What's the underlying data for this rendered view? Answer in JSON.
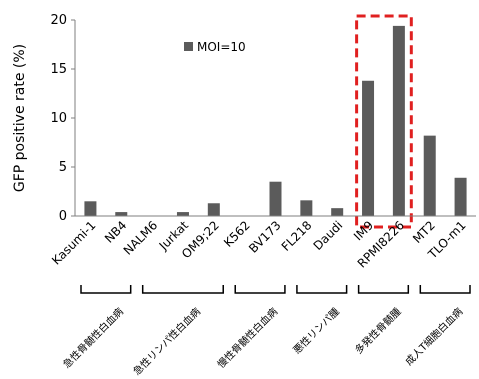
{
  "chart_data": {
    "type": "bar",
    "ylabel": "GFP positive rate (%)",
    "xlabel": "",
    "ylim": [
      0,
      20
    ],
    "yticks": [
      0,
      5,
      10,
      15,
      20
    ],
    "grid": false,
    "legend_position": "top-left",
    "bar_color": "#5b5b5b",
    "highlight_color": "#e02020",
    "categories": [
      "Kasumi-1",
      "NB4",
      "NALM6",
      "Jurkat",
      "OM9;22",
      "K562",
      "BV173",
      "FL218",
      "Daudi",
      "IM9",
      "RPMI8226",
      "MT2",
      "TLO-m1"
    ],
    "series": [
      {
        "name": "MOI=10",
        "values": [
          1.5,
          0.4,
          0,
          0.4,
          1.3,
          0,
          3.5,
          1.6,
          0.8,
          13.8,
          19.4,
          8.2,
          3.9
        ]
      }
    ],
    "highlight": [
      "IM9",
      "RPMI8226"
    ],
    "groups": [
      {
        "label": "急性骨髄性白血病",
        "start": 0,
        "end": 1
      },
      {
        "label": "急性リンパ性白血病",
        "start": 2,
        "end": 4
      },
      {
        "label": "慢性骨髄性白血病",
        "start": 5,
        "end": 6
      },
      {
        "label": "悪性リンパ腫",
        "start": 7,
        "end": 8
      },
      {
        "label": "多発性骨髄腫",
        "start": 9,
        "end": 10
      },
      {
        "label": "成人T細胞白血病",
        "start": 11,
        "end": 12
      }
    ]
  }
}
